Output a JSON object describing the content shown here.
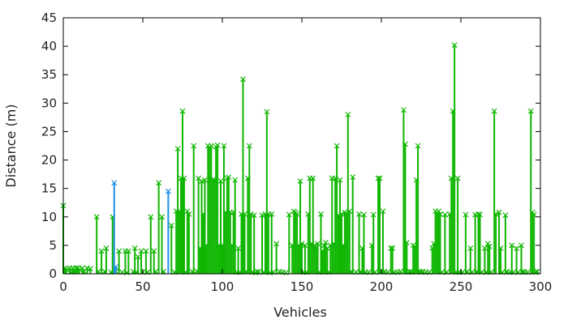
{
  "chart_data": {
    "type": "impulse",
    "xlabel": "Vehicles",
    "ylabel": "Distance (m)",
    "xlim": [
      0,
      300
    ],
    "ylim": [
      0,
      45
    ],
    "xticks": [
      0,
      50,
      100,
      150,
      200,
      250,
      300
    ],
    "yticks": [
      0,
      5,
      10,
      15,
      20,
      25,
      30,
      35,
      40,
      45
    ],
    "grid": false,
    "legend": "none",
    "series": [
      {
        "color": "#0eb600",
        "marker": "x",
        "points": [
          [
            0,
            12
          ],
          [
            1,
            1
          ],
          [
            2,
            0.8
          ],
          [
            4,
            1
          ],
          [
            5,
            0.3
          ],
          [
            6,
            1
          ],
          [
            7,
            0.5
          ],
          [
            8,
            1
          ],
          [
            9,
            1
          ],
          [
            10,
            0.8
          ],
          [
            12,
            1
          ],
          [
            13,
            0.4
          ],
          [
            15,
            1
          ],
          [
            17,
            0.9
          ],
          [
            21,
            10
          ],
          [
            22,
            0.4
          ],
          [
            24,
            4
          ],
          [
            26,
            0.4
          ],
          [
            27,
            4.5
          ],
          [
            30,
            0.3
          ],
          [
            31,
            10
          ],
          [
            33,
            0.4
          ],
          [
            35,
            4
          ],
          [
            37,
            0.3
          ],
          [
            39,
            4
          ],
          [
            40,
            0.2
          ],
          [
            41,
            4
          ],
          [
            44,
            0.4
          ],
          [
            45,
            4.5
          ],
          [
            46,
            0.3
          ],
          [
            47,
            3
          ],
          [
            49,
            4
          ],
          [
            50,
            0.3
          ],
          [
            52,
            4
          ],
          [
            53,
            0.3
          ],
          [
            55,
            10
          ],
          [
            57,
            4
          ],
          [
            58,
            0.4
          ],
          [
            60,
            16
          ],
          [
            62,
            10
          ],
          [
            63,
            0.4
          ],
          [
            68,
            8.5
          ],
          [
            70,
            0.3
          ],
          [
            71,
            11
          ],
          [
            72,
            22
          ],
          [
            73,
            11
          ],
          [
            74,
            16.8
          ],
          [
            75,
            28.6
          ],
          [
            76,
            16.8
          ],
          [
            77,
            0.3
          ],
          [
            78,
            11
          ],
          [
            79,
            10.5
          ],
          [
            81,
            0.4
          ],
          [
            82,
            22.5
          ],
          [
            84,
            0.5
          ],
          [
            85,
            16.8
          ],
          [
            86,
            4.5
          ],
          [
            87,
            16.3
          ],
          [
            88,
            10.5
          ],
          [
            89,
            16.5
          ],
          [
            90,
            5
          ],
          [
            91,
            22.5
          ],
          [
            92,
            22
          ],
          [
            93,
            22.5
          ],
          [
            94,
            16.5
          ],
          [
            95,
            16.5
          ],
          [
            96,
            22.3
          ],
          [
            97,
            22.6
          ],
          [
            98,
            5
          ],
          [
            99,
            16.3
          ],
          [
            100,
            5
          ],
          [
            101,
            22.5
          ],
          [
            102,
            10.8
          ],
          [
            103,
            16.8
          ],
          [
            104,
            17
          ],
          [
            105,
            10.8
          ],
          [
            106,
            5
          ],
          [
            107,
            10.8
          ],
          [
            108,
            16.5
          ],
          [
            109,
            0.3
          ],
          [
            110,
            4.5
          ],
          [
            111,
            0.3
          ],
          [
            112,
            10.5
          ],
          [
            113,
            34.2
          ],
          [
            114,
            10.5
          ],
          [
            115,
            0.4
          ],
          [
            116,
            16.8
          ],
          [
            117,
            22.5
          ],
          [
            118,
            10.5
          ],
          [
            119,
            0.3
          ],
          [
            120,
            10.3
          ],
          [
            121,
            0.2
          ],
          [
            122,
            0.4
          ],
          [
            123,
            0.3
          ],
          [
            125,
            10.3
          ],
          [
            126,
            0.3
          ],
          [
            127,
            10.5
          ],
          [
            128,
            28.5
          ],
          [
            129,
            10.5
          ],
          [
            130,
            0.2
          ],
          [
            131,
            10.5
          ],
          [
            132,
            0.3
          ],
          [
            134,
            5.3
          ],
          [
            136,
            0.4
          ],
          [
            138,
            0.3
          ],
          [
            140,
            0.2
          ],
          [
            142,
            10.4
          ],
          [
            144,
            5
          ],
          [
            145,
            11
          ],
          [
            146,
            10.8
          ],
          [
            147,
            10.5
          ],
          [
            148,
            5
          ],
          [
            149,
            16.3
          ],
          [
            150,
            5.3
          ],
          [
            151,
            0.3
          ],
          [
            152,
            5
          ],
          [
            153,
            0.3
          ],
          [
            154,
            10.5
          ],
          [
            155,
            16.8
          ],
          [
            156,
            5.3
          ],
          [
            157,
            16.8
          ],
          [
            158,
            5
          ],
          [
            159,
            4.5
          ],
          [
            160,
            5.3
          ],
          [
            161,
            0.3
          ],
          [
            162,
            10.5
          ],
          [
            163,
            4
          ],
          [
            164,
            5
          ],
          [
            165,
            5.5
          ],
          [
            166,
            4.5
          ],
          [
            167,
            0.3
          ],
          [
            168,
            5
          ],
          [
            169,
            16.8
          ],
          [
            170,
            5.3
          ],
          [
            171,
            16.8
          ],
          [
            172,
            22.5
          ],
          [
            173,
            10.3
          ],
          [
            174,
            16.5
          ],
          [
            175,
            10.5
          ],
          [
            176,
            5
          ],
          [
            177,
            10.8
          ],
          [
            178,
            10.6
          ],
          [
            179,
            28
          ],
          [
            180,
            11
          ],
          [
            181,
            0.4
          ],
          [
            182,
            17
          ],
          [
            184,
            0.3
          ],
          [
            186,
            10.5
          ],
          [
            187,
            0.4
          ],
          [
            188,
            4.5
          ],
          [
            189,
            10.4
          ],
          [
            190,
            0.3
          ],
          [
            192,
            0.3
          ],
          [
            194,
            5
          ],
          [
            195,
            10.4
          ],
          [
            196,
            0.3
          ],
          [
            198,
            16.8
          ],
          [
            199,
            16.8
          ],
          [
            200,
            0.4
          ],
          [
            201,
            11
          ],
          [
            202,
            0.4
          ],
          [
            204,
            0.3
          ],
          [
            206,
            4.5
          ],
          [
            207,
            4.5
          ],
          [
            208,
            0.3
          ],
          [
            210,
            0.3
          ],
          [
            212,
            0.4
          ],
          [
            214,
            28.8
          ],
          [
            215,
            22.8
          ],
          [
            216,
            5.5
          ],
          [
            217,
            0.3
          ],
          [
            218,
            0.4
          ],
          [
            219,
            0.3
          ],
          [
            220,
            5
          ],
          [
            221,
            4.8
          ],
          [
            222,
            16.5
          ],
          [
            223,
            22.5
          ],
          [
            224,
            0.4
          ],
          [
            225,
            0.3
          ],
          [
            226,
            0.4
          ],
          [
            228,
            0.3
          ],
          [
            230,
            0.3
          ],
          [
            232,
            4.5
          ],
          [
            233,
            5.3
          ],
          [
            234,
            11
          ],
          [
            235,
            10.6
          ],
          [
            236,
            11
          ],
          [
            237,
            10.5
          ],
          [
            238,
            0.3
          ],
          [
            240,
            10.4
          ],
          [
            241,
            0.3
          ],
          [
            243,
            10.5
          ],
          [
            244,
            16.8
          ],
          [
            245,
            28.6
          ],
          [
            246,
            40.2
          ],
          [
            247,
            0.3
          ],
          [
            248,
            16.8
          ],
          [
            249,
            0.3
          ],
          [
            251,
            0.3
          ],
          [
            253,
            10.4
          ],
          [
            254,
            0.4
          ],
          [
            256,
            4.5
          ],
          [
            257,
            0.3
          ],
          [
            259,
            10.4
          ],
          [
            260,
            0.4
          ],
          [
            261,
            10.5
          ],
          [
            262,
            10.4
          ],
          [
            263,
            0.3
          ],
          [
            265,
            4.5
          ],
          [
            266,
            0.3
          ],
          [
            267,
            5.3
          ],
          [
            268,
            4.8
          ],
          [
            269,
            0.3
          ],
          [
            271,
            28.6
          ],
          [
            272,
            10.5
          ],
          [
            274,
            10.8
          ],
          [
            275,
            4.5
          ],
          [
            276,
            0.3
          ],
          [
            278,
            10.3
          ],
          [
            279,
            0.4
          ],
          [
            281,
            0.3
          ],
          [
            282,
            5
          ],
          [
            283,
            0.3
          ],
          [
            285,
            4.5
          ],
          [
            286,
            0.3
          ],
          [
            288,
            5
          ],
          [
            289,
            0.4
          ],
          [
            290,
            0.3
          ],
          [
            292,
            0.3
          ],
          [
            294,
            28.6
          ],
          [
            295,
            10.8
          ],
          [
            296,
            10.4
          ],
          [
            297,
            0.3
          ],
          [
            298,
            0.4
          ]
        ]
      },
      {
        "color": "#1f8fe6",
        "marker": "x",
        "points": [
          [
            32,
            16
          ],
          [
            33,
            1.2
          ],
          [
            66,
            14.5
          ]
        ]
      }
    ]
  }
}
